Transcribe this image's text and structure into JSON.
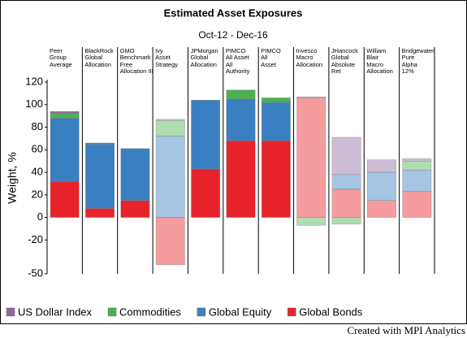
{
  "chart_data": {
    "type": "stacked_bar",
    "title": "Estimated Asset Exposures",
    "subtitle": "Oct-12 - Dec-16",
    "y_label": "Weight, %",
    "footer": "Created with MPI Analytics",
    "categories": [
      "Peer\nGroup\nAverage",
      "BlackRock\nGlobal\nAllocation",
      "GMO\nBenchmark\nFree\nAllocation III",
      "Ivy\nAsset\nStrategy",
      "JPMorgan\nGlobal\nAllocation",
      "PIMCO\nAll Asset\nAll\nAuthority",
      "PIMCO\nAll\nAsset",
      "Invesco\nMacro\nAllocation",
      "JHancock\nGlobal\nAbsolute\nRet",
      "William\nBlair\nMacro\nAllocation",
      "Bridgewater\nPure\nAlpha\n12%"
    ],
    "category_opacity": [
      1,
      1,
      1,
      0.45,
      1,
      1,
      1,
      0.45,
      0.45,
      0.45,
      0.45
    ],
    "series": [
      {
        "name": "US Dollar Index",
        "color": "#8e6c9f",
        "values": [
          2,
          1,
          0,
          1,
          0,
          0,
          0,
          1,
          33,
          11,
          2
        ]
      },
      {
        "name": "Commodities",
        "color": "#4caf50",
        "values": [
          4,
          0,
          0,
          14,
          0,
          8,
          4,
          -7,
          -6,
          0,
          8
        ]
      },
      {
        "name": "Global Equity",
        "color": "#3a7fc1",
        "values": [
          56,
          57,
          46,
          72,
          61,
          37,
          34,
          0,
          13,
          25,
          19
        ]
      },
      {
        "name": "Global Bonds",
        "color": "#e8232a",
        "values": [
          32,
          8,
          15,
          -42,
          43,
          68,
          68,
          106,
          25,
          15,
          23
        ]
      }
    ],
    "ylim": [
      -50,
      120
    ],
    "yticks": [
      120,
      100,
      80,
      60,
      40,
      20,
      0,
      -20,
      -50
    ],
    "grid": false
  }
}
